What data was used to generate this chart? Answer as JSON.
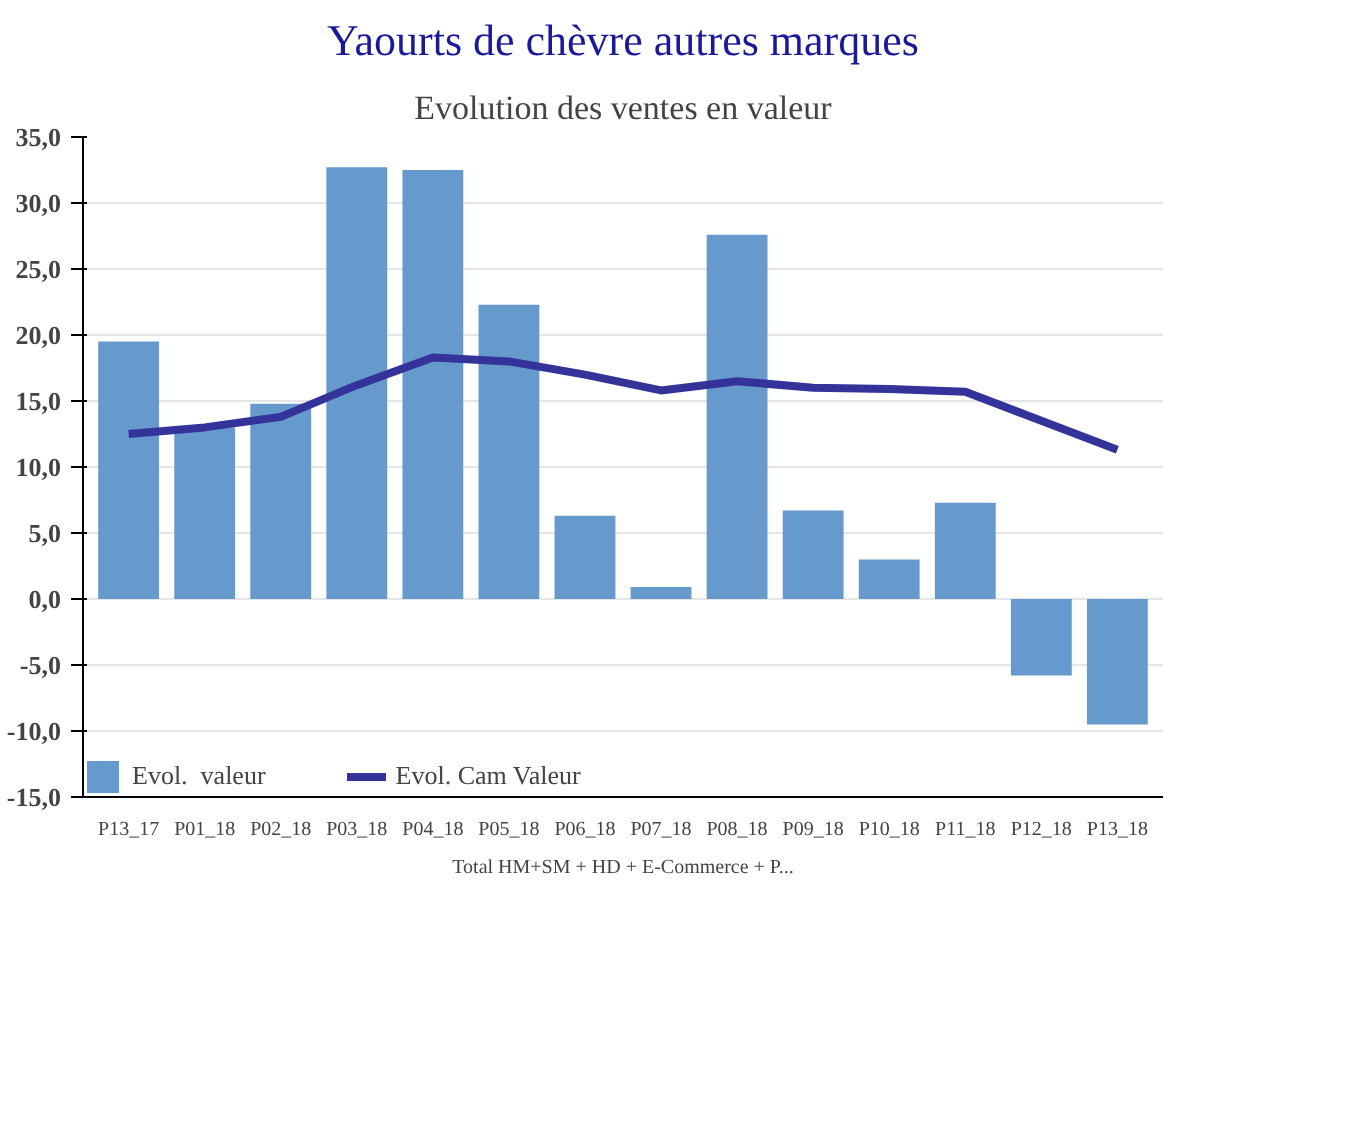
{
  "chart_data": {
    "type": "bar",
    "title": "Yaourts de chèvre autres marques",
    "subtitle": "Evolution des ventes en valeur",
    "xlabel": "Total HM+SM + HD + E-Commerce + P...",
    "categories": [
      "P13_17",
      "P01_18",
      "P02_18",
      "P03_18",
      "P04_18",
      "P05_18",
      "P06_18",
      "P07_18",
      "P08_18",
      "P09_18",
      "P10_18",
      "P11_18",
      "P12_18",
      "P13_18"
    ],
    "series": [
      {
        "name": "Evol.  valeur",
        "color": "#6699cc",
        "values": [
          19.5,
          13.0,
          14.8,
          32.7,
          32.5,
          22.3,
          6.3,
          0.9,
          27.6,
          6.7,
          3.0,
          7.3,
          -5.8,
          -9.5
        ]
      },
      {
        "name": "Evol. Cam Valeur",
        "type": "line",
        "color": "#333399",
        "values": [
          12.5,
          13.0,
          13.8,
          16.2,
          18.3,
          18.0,
          17.0,
          15.8,
          16.5,
          16.0,
          15.9,
          15.7,
          13.5,
          11.3
        ]
      }
    ],
    "ylim": [
      -15,
      35
    ],
    "yticks": [
      {
        "value": -15,
        "label": "-15,0"
      },
      {
        "value": -10,
        "label": "-10,0"
      },
      {
        "value": -5,
        "label": "-5,0"
      },
      {
        "value": 0,
        "label": "0,0"
      },
      {
        "value": 5,
        "label": "5,0"
      },
      {
        "value": 10,
        "label": "10,0"
      },
      {
        "value": 15,
        "label": "15,0"
      },
      {
        "value": 20,
        "label": "20,0"
      },
      {
        "value": 25,
        "label": "25,0"
      },
      {
        "value": 30,
        "label": "30,0"
      },
      {
        "value": 35,
        "label": "35,0"
      }
    ],
    "grid": "y",
    "legend": "bottom",
    "marker": "none",
    "line_style": "solid"
  }
}
